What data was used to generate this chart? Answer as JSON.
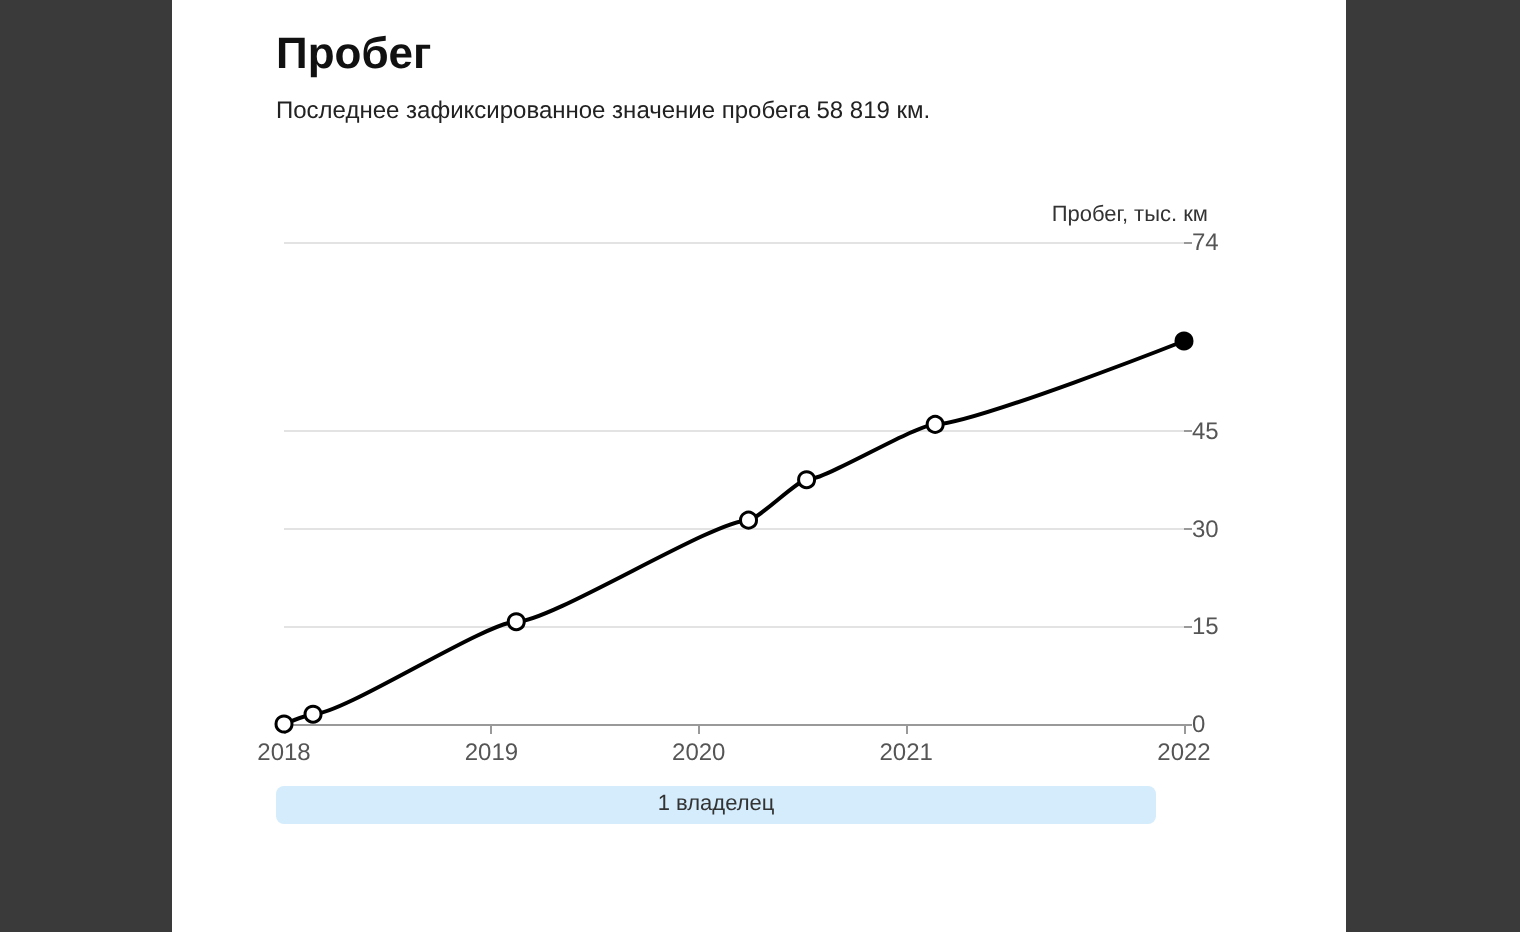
{
  "chart_data": {
    "type": "line",
    "title": "Пробег",
    "subtitle": "Последнее зафиксированное значение пробега 58 819 км.",
    "ylabel": "Пробег, тыс. км",
    "x": [
      2018.0,
      2018.14,
      2019.12,
      2020.24,
      2020.52,
      2021.14,
      2022.34
    ],
    "series": [
      {
        "color": "#000000",
        "values": [
          0,
          1.5,
          15.7,
          31.3,
          37.5,
          46,
          58.8
        ]
      }
    ],
    "xlim": [
      2018,
      2022.34
    ],
    "xticks": [
      2018,
      2019,
      2020,
      2021,
      {
        "value": 2022.34,
        "label": "2022"
      }
    ],
    "ylim": [
      0,
      74
    ],
    "yticks": [
      0,
      15,
      30,
      45,
      74
    ],
    "annotations": [
      "1 владелец"
    ],
    "grid": "y",
    "marker": "circle",
    "line_style": "solid"
  }
}
